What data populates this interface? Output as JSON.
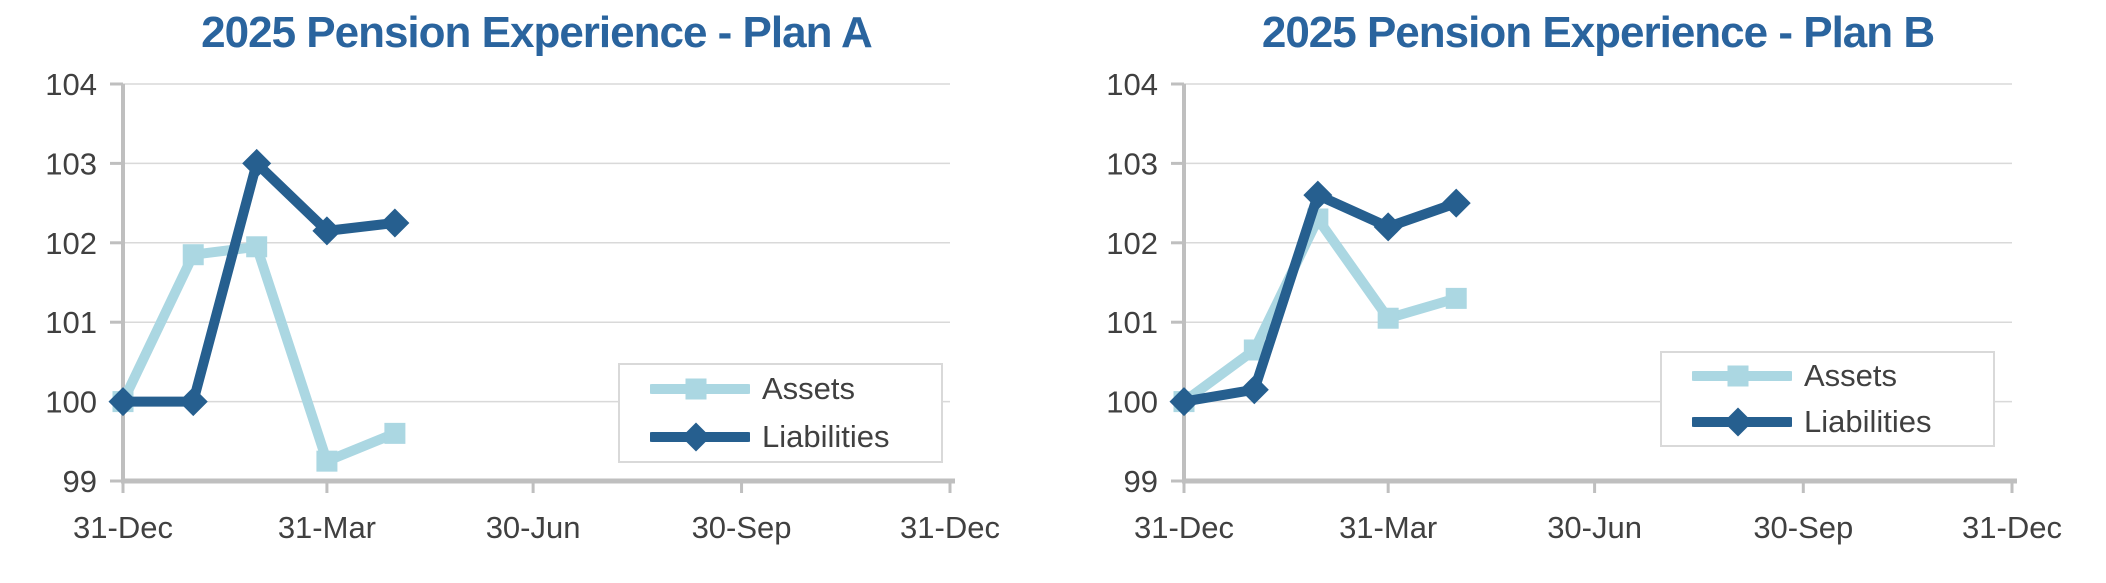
{
  "page": {
    "background": "#FFFFFF"
  },
  "colors": {
    "title": "#2A649E",
    "assets": "#ABD7E2",
    "liabilities": "#265F8F",
    "axis_line": "#BFBFBF",
    "gridline": "#D9D9D9",
    "tick_label": "#404040",
    "legend_text": "#404040",
    "legend_border": "#D9D9D9",
    "legend_background": "#FFFFFF"
  },
  "chart_data": [
    {
      "type": "line",
      "title": "2025 Pension Experience - Plan A",
      "xlabel": "",
      "ylabel": "",
      "ylim": [
        99,
        104
      ],
      "y_ticks": [
        99,
        100,
        101,
        102,
        103,
        104
      ],
      "grid": true,
      "legend_position": "bottom-right",
      "x_range_days": [
        0,
        365
      ],
      "x_ticks": [
        {
          "day": 0,
          "label": "31-Dec"
        },
        {
          "day": 90,
          "label": "31-Mar"
        },
        {
          "day": 181,
          "label": "30-Jun"
        },
        {
          "day": 273,
          "label": "30-Sep"
        },
        {
          "day": 365,
          "label": "31-Dec"
        }
      ],
      "x_days": [
        0,
        31,
        59,
        90,
        120
      ],
      "series": [
        {
          "name": "Assets",
          "marker": "square",
          "color_key": "assets",
          "values": [
            100.0,
            101.85,
            101.95,
            99.25,
            99.6
          ]
        },
        {
          "name": "Liabilities",
          "marker": "diamond",
          "color_key": "liabilities",
          "values": [
            100.0,
            100.0,
            103.0,
            102.15,
            102.25
          ]
        }
      ]
    },
    {
      "type": "line",
      "title": "2025 Pension Experience - Plan B",
      "xlabel": "",
      "ylabel": "",
      "ylim": [
        99,
        104
      ],
      "y_ticks": [
        99,
        100,
        101,
        102,
        103,
        104
      ],
      "grid": true,
      "legend_position": "bottom-right",
      "x_range_days": [
        0,
        365
      ],
      "x_ticks": [
        {
          "day": 0,
          "label": "31-Dec"
        },
        {
          "day": 90,
          "label": "31-Mar"
        },
        {
          "day": 181,
          "label": "30-Jun"
        },
        {
          "day": 273,
          "label": "30-Sep"
        },
        {
          "day": 365,
          "label": "31-Dec"
        }
      ],
      "x_days": [
        0,
        31,
        59,
        90,
        120
      ],
      "series": [
        {
          "name": "Assets",
          "marker": "square",
          "color_key": "assets",
          "values": [
            100.0,
            100.65,
            102.3,
            101.05,
            101.3
          ]
        },
        {
          "name": "Liabilities",
          "marker": "diamond",
          "color_key": "liabilities",
          "values": [
            100.0,
            100.15,
            102.6,
            102.2,
            102.5
          ]
        }
      ]
    }
  ]
}
